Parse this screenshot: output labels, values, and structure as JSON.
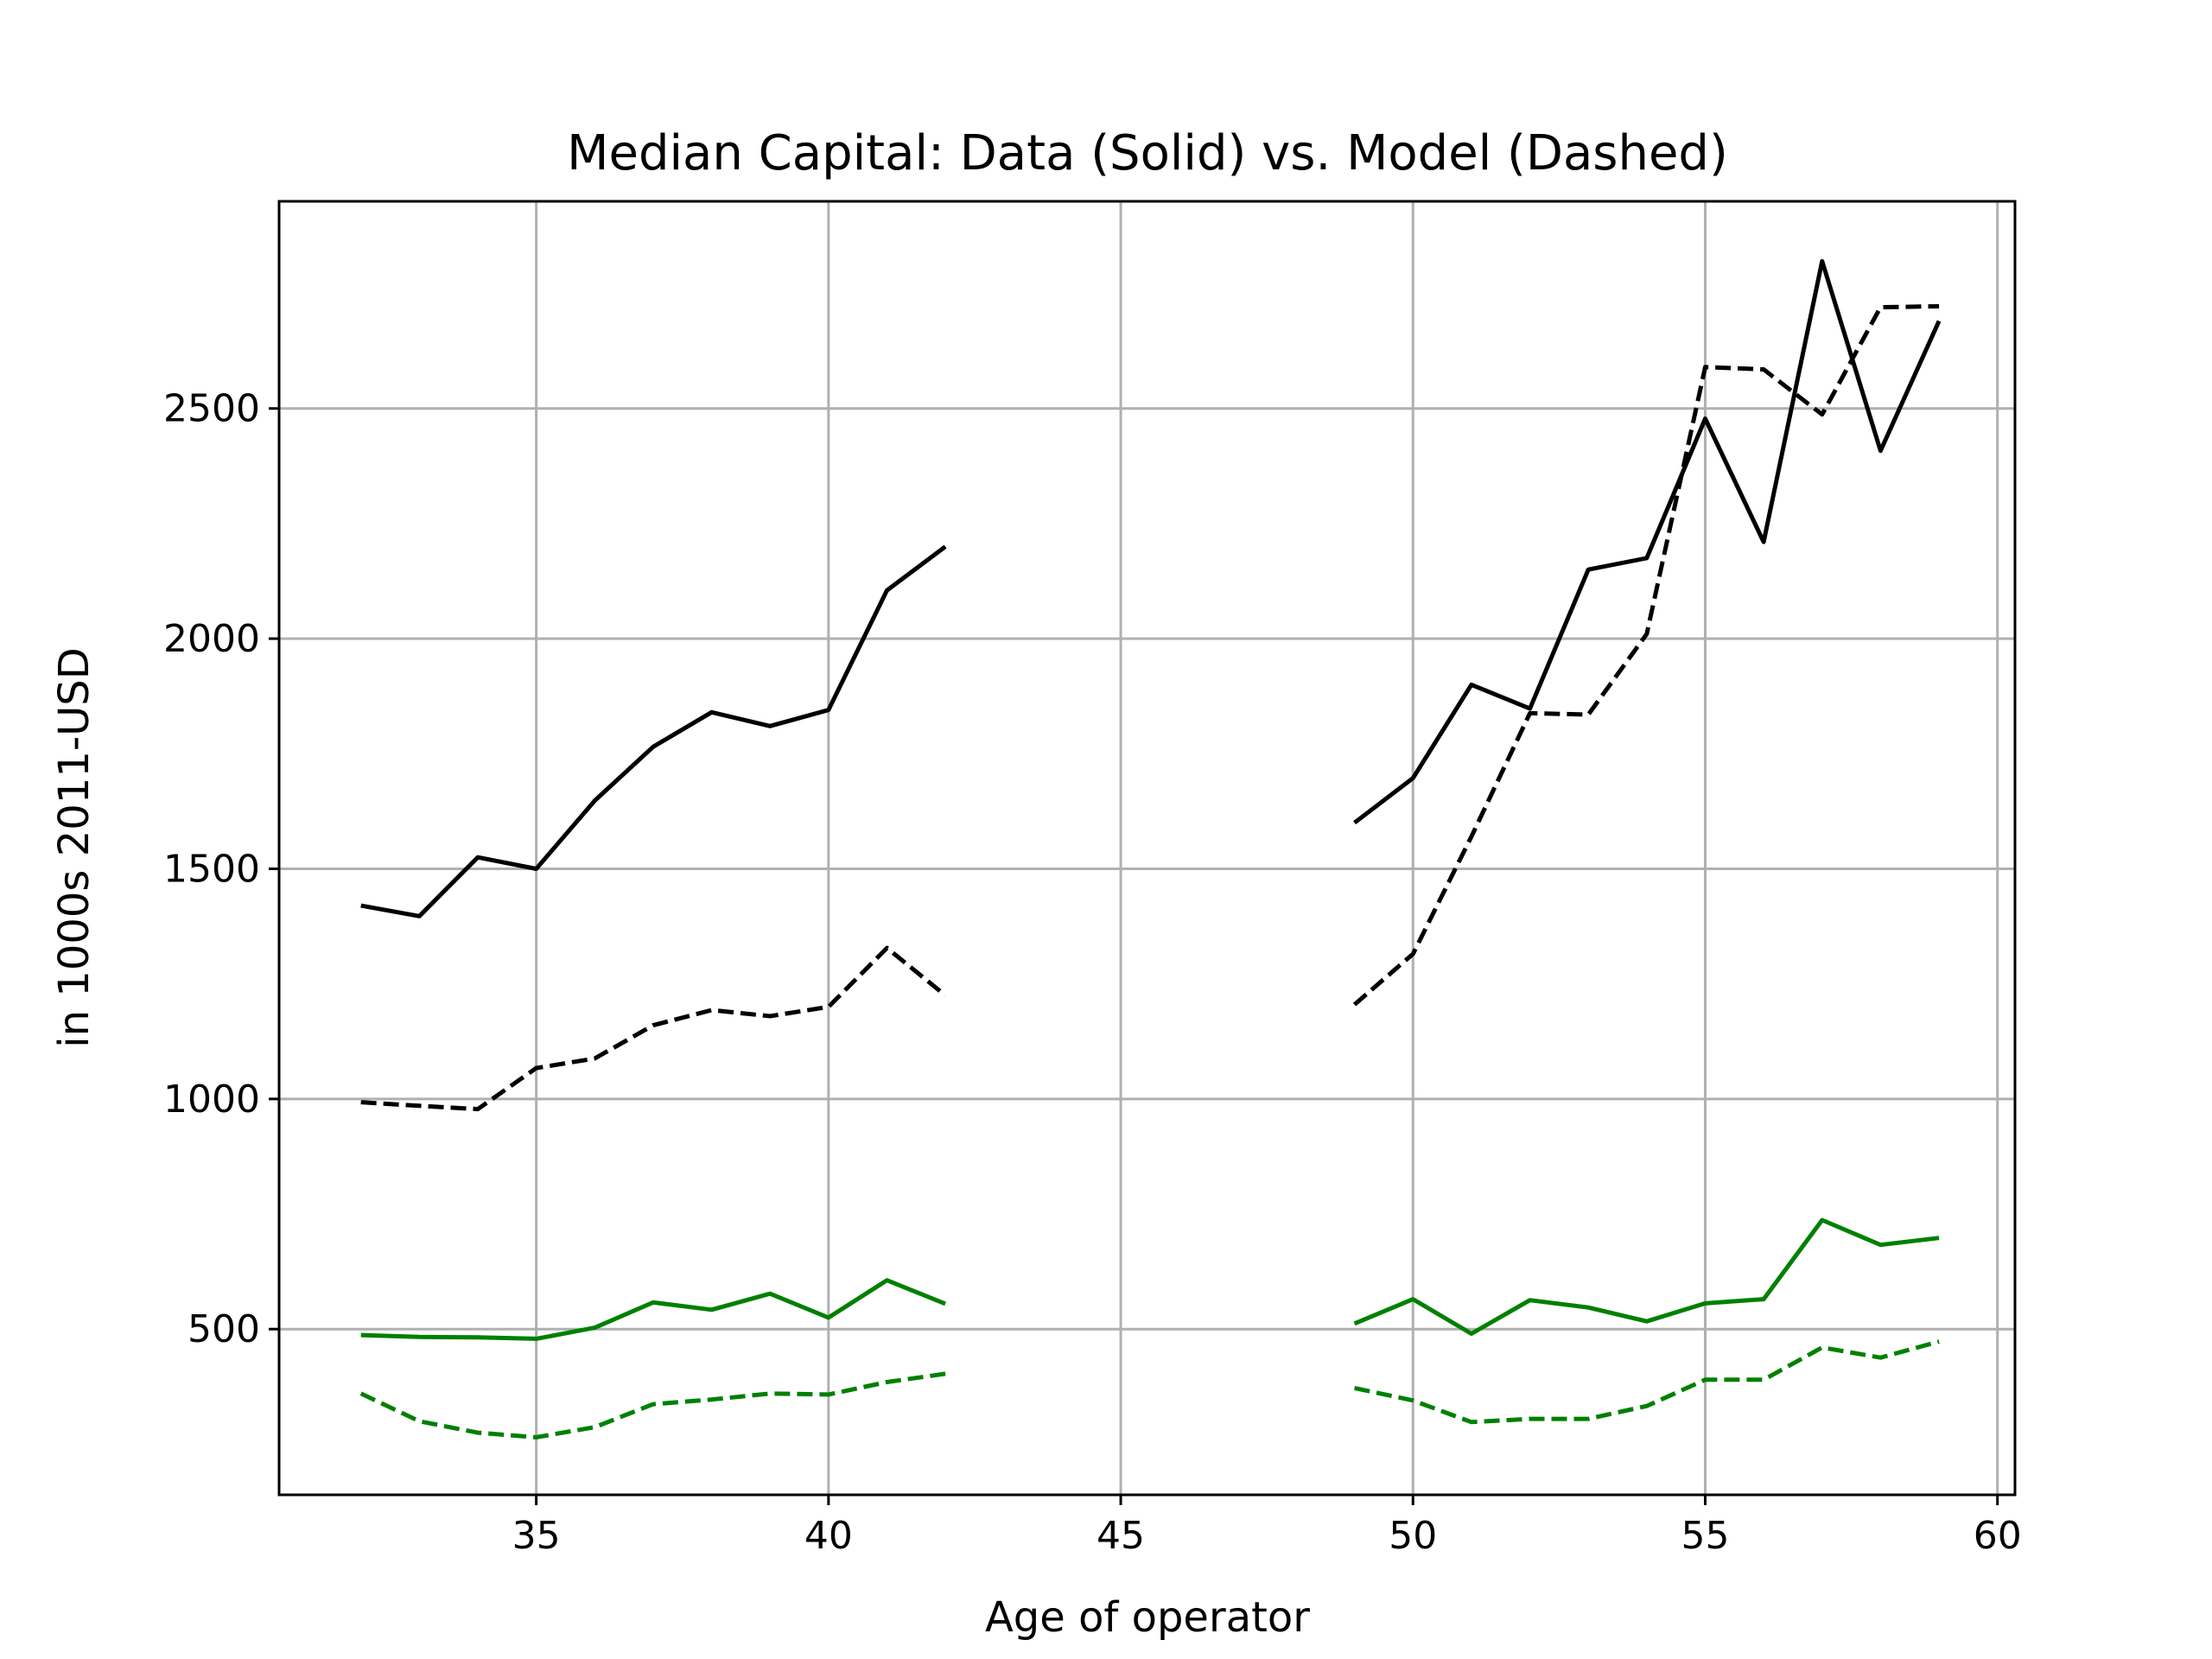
{
  "chart_data": {
    "type": "line",
    "title": "Median Capital: Data (Solid) vs. Model (Dashed)",
    "xlabel": "Age of operator",
    "ylabel": "in 1000s 2011-USD",
    "xlim": [
      30.6,
      60.3
    ],
    "ylim": [
      140,
      2950
    ],
    "xticks": [
      35,
      40,
      45,
      50,
      55,
      60
    ],
    "yticks": [
      500,
      1000,
      1500,
      2000,
      2500
    ],
    "grid": true,
    "legend": "none",
    "series": [
      {
        "style": "solid",
        "color": "#000000",
        "segments": [
          {
            "x": [
              32,
              33,
              34,
              35,
              36,
              37,
              38,
              39,
              40,
              41,
              42
            ],
            "y": [
              1420,
              1397,
              1525,
              1500,
              1648,
              1765,
              1840,
              1810,
              1845,
              2105,
              2200
            ]
          },
          {
            "x": [
              49,
              50,
              51,
              52,
              53,
              54,
              55,
              56,
              57,
              58,
              59
            ],
            "y": [
              1600,
              1697,
              1900,
              1848,
              2150,
              2175,
              2478,
              2210,
              2820,
              2408,
              2690
            ]
          }
        ]
      },
      {
        "style": "dashed",
        "color": "#000000",
        "segments": [
          {
            "x": [
              32,
              33,
              34,
              35,
              36,
              37,
              38,
              39,
              40,
              41,
              42
            ],
            "y": [
              993,
              985,
              978,
              1067,
              1088,
              1160,
              1193,
              1180,
              1200,
              1328,
              1225
            ]
          },
          {
            "x": [
              49,
              50,
              51,
              52,
              53,
              54,
              55,
              56,
              57,
              58,
              59
            ],
            "y": [
              1205,
              1315,
              1570,
              1838,
              1835,
              2010,
              2590,
              2585,
              2487,
              2720,
              2722
            ]
          }
        ]
      },
      {
        "style": "solid",
        "color": "#008000",
        "segments": [
          {
            "x": [
              32,
              33,
              34,
              35,
              36,
              37,
              38,
              39,
              40,
              41,
              42
            ],
            "y": [
              487,
              483,
              482,
              479,
              503,
              558,
              542,
              577,
              525,
              606,
              555
            ]
          },
          {
            "x": [
              49,
              50,
              51,
              52,
              53,
              54,
              55,
              56,
              57,
              58,
              59
            ],
            "y": [
              512,
              565,
              490,
              563,
              547,
              517,
              556,
              565,
              737,
              683,
              698
            ]
          }
        ]
      },
      {
        "style": "dashed",
        "color": "#008000",
        "segments": [
          {
            "x": [
              32,
              33,
              34,
              35,
              36,
              37,
              38,
              39,
              40,
              41,
              42
            ],
            "y": [
              360,
              300,
              275,
              265,
              287,
              337,
              347,
              360,
              358,
              385,
              403
            ]
          },
          {
            "x": [
              49,
              50,
              51,
              52,
              53,
              54,
              55,
              56,
              57,
              58,
              59
            ],
            "y": [
              372,
              345,
              298,
              305,
              305,
              333,
              390,
              390,
              460,
              438,
              473
            ]
          }
        ]
      }
    ]
  }
}
